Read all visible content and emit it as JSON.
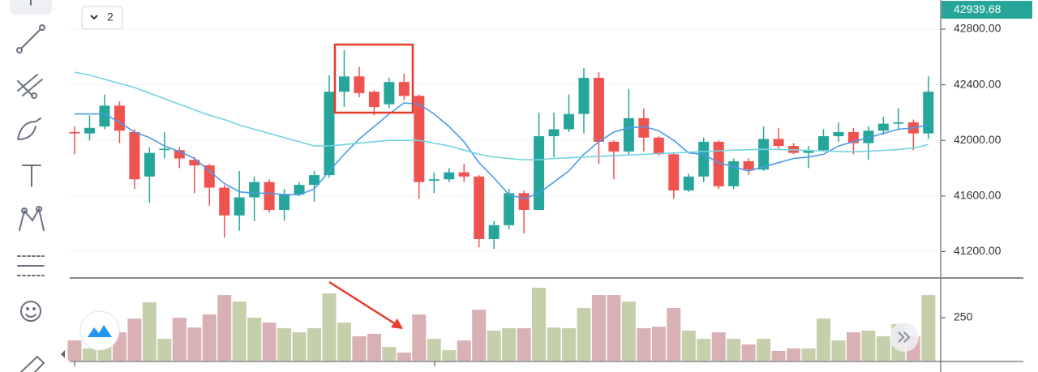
{
  "ui": {
    "collapsed_badge": "2"
  },
  "chart_data": [
    {
      "type": "candlestick",
      "ylim": [
        41010,
        43010
      ],
      "yticks": [
        {
          "value": 41200,
          "label": "41200.00"
        },
        {
          "value": 41600,
          "label": "41600.00"
        },
        {
          "value": 42000,
          "label": "42000.00"
        },
        {
          "value": 42400,
          "label": "42400.00"
        },
        {
          "value": 42800,
          "label": "42800.00"
        }
      ],
      "last_price": 42939.68,
      "up_color": "#26a69a",
      "down_color": "#ef5350",
      "open": [
        42060,
        42050,
        42100,
        42250,
        42060,
        41740,
        41930,
        41930,
        41860,
        41820,
        41660,
        41460,
        41590,
        41700,
        41500,
        41610,
        41680,
        41750,
        42350,
        42460,
        42350,
        42260,
        42420,
        42320,
        41710,
        41720,
        41770,
        41740,
        41290,
        41390,
        41620,
        41500,
        42030,
        42080,
        42190,
        42450,
        41990,
        41920,
        42160,
        42020,
        41900,
        41640,
        41740,
        41990,
        41670,
        41850,
        41790,
        42010,
        41960,
        41910,
        41930,
        42030,
        42060,
        41980,
        42070,
        42120,
        42130,
        42050
      ],
      "high": [
        42100,
        42180,
        42330,
        42280,
        42080,
        41950,
        42060,
        41950,
        41880,
        41830,
        41680,
        41780,
        41740,
        41720,
        41650,
        41700,
        41780,
        42470,
        42650,
        42530,
        42360,
        42450,
        42480,
        42330,
        41770,
        41800,
        41830,
        41750,
        41420,
        41650,
        41640,
        42200,
        42200,
        42330,
        42520,
        42490,
        42000,
        42370,
        42230,
        42030,
        41910,
        41760,
        42020,
        42000,
        41870,
        41870,
        42100,
        42090,
        41980,
        41960,
        42080,
        42130,
        42090,
        42100,
        42170,
        42230,
        42150,
        42460
      ],
      "low": [
        41900,
        42000,
        42080,
        41980,
        41650,
        41550,
        41870,
        41800,
        41620,
        41530,
        41300,
        41350,
        41420,
        41480,
        41420,
        41600,
        41560,
        41730,
        42240,
        42310,
        42180,
        42230,
        42290,
        41580,
        41620,
        41700,
        41700,
        41230,
        41220,
        41360,
        41330,
        41500,
        41880,
        42060,
        42050,
        41830,
        41720,
        41900,
        41920,
        41890,
        41580,
        41630,
        41700,
        41650,
        41650,
        41750,
        41780,
        41930,
        41900,
        41800,
        41920,
        41990,
        41900,
        41860,
        42040,
        42080,
        41930,
        42010
      ],
      "close": [
        42050,
        42090,
        42250,
        42070,
        41720,
        41910,
        41940,
        41870,
        41820,
        41660,
        41460,
        41590,
        41700,
        41500,
        41610,
        41680,
        41750,
        42350,
        42460,
        42340,
        42240,
        42420,
        42320,
        41700,
        41720,
        41770,
        41740,
        41290,
        41390,
        41620,
        41500,
        42030,
        42080,
        42190,
        42450,
        41990,
        41920,
        42160,
        42020,
        41900,
        41640,
        41740,
        41990,
        41670,
        41850,
        41790,
        42010,
        41960,
        41910,
        41930,
        42030,
        42060,
        41980,
        42070,
        42120,
        42130,
        42050,
        42350
      ],
      "moving_averages": [
        {
          "color": "#4b9be6",
          "values": [
            42190,
            42190,
            42190,
            42130,
            42060,
            42020,
            41960,
            41920,
            41870,
            41780,
            41690,
            41630,
            41620,
            41620,
            41610,
            41610,
            41650,
            41780,
            41900,
            42010,
            42100,
            42190,
            42270,
            42260,
            42190,
            42100,
            41990,
            41840,
            41730,
            41610,
            41580,
            41620,
            41700,
            41780,
            41900,
            41990,
            42060,
            42090,
            42100,
            42070,
            42000,
            41910,
            41900,
            41840,
            41810,
            41780,
            41810,
            41840,
            41870,
            41880,
            41900,
            41960,
            41990,
            42020,
            42050,
            42080,
            42090,
            42110
          ]
        },
        {
          "color": "#73d3df",
          "values": [
            42490,
            42470,
            42440,
            42410,
            42380,
            42340,
            42300,
            42260,
            42220,
            42180,
            42150,
            42110,
            42080,
            42050,
            42020,
            41990,
            41960,
            41960,
            41970,
            41980,
            41990,
            42000,
            42000,
            42000,
            41980,
            41960,
            41930,
            41900,
            41880,
            41870,
            41860,
            41860,
            41870,
            41875,
            41880,
            41885,
            41890,
            41895,
            41900,
            41905,
            41910,
            41915,
            41920,
            41925,
            41930,
            41933,
            41936,
            41935,
            41932,
            41928,
            41924,
            41920,
            41918,
            41922,
            41928,
            41935,
            41945,
            41970
          ]
        }
      ]
    },
    {
      "type": "bar",
      "ylim": [
        0,
        472
      ],
      "yticks": [
        250
      ],
      "up_color": "#c6cfab",
      "down_color": "#d9b1b4",
      "values": [
        118,
        71,
        118,
        165,
        245,
        340,
        127,
        250,
        193,
        269,
        382,
        344,
        250,
        222,
        189,
        165,
        189,
        392,
        222,
        142,
        156,
        80,
        47,
        269,
        127,
        61,
        118,
        297,
        175,
        189,
        189,
        425,
        193,
        189,
        307,
        382,
        382,
        344,
        189,
        198,
        307,
        175,
        127,
        165,
        127,
        94,
        127,
        57,
        71,
        71,
        245,
        118,
        165,
        175,
        142,
        212,
        142,
        382
      ]
    }
  ]
}
